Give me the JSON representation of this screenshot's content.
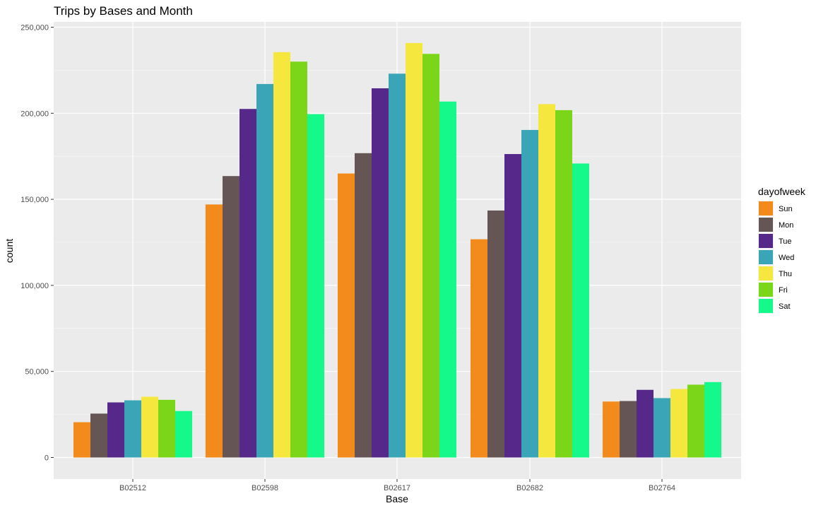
{
  "chart_data": {
    "type": "bar",
    "title": "Trips by Bases and Month",
    "xlabel": "Base",
    "ylabel": "count",
    "legend_title": "dayofweek",
    "legend_position": "right",
    "grid": true,
    "ylim": [
      0,
      250000
    ],
    "y_ticks": [
      0,
      50000,
      100000,
      150000,
      200000,
      250000
    ],
    "y_tick_labels": [
      "0",
      "50,000",
      "100,000",
      "150,000",
      "200,000",
      "250,000"
    ],
    "categories": [
      "B02512",
      "B02598",
      "B02617",
      "B02682",
      "B02764"
    ],
    "series": [
      {
        "name": "Sun",
        "color": "#F28A1C",
        "values": [
          20500,
          147000,
          165000,
          126800,
          32500
        ]
      },
      {
        "name": "Mon",
        "color": "#665555",
        "values": [
          25500,
          163500,
          176800,
          143500,
          32800
        ]
      },
      {
        "name": "Tue",
        "color": "#55288A",
        "values": [
          32000,
          202500,
          214500,
          176300,
          39300
        ]
      },
      {
        "name": "Wed",
        "color": "#3AA5B6",
        "values": [
          33200,
          217000,
          223000,
          190300,
          34500
        ]
      },
      {
        "name": "Thu",
        "color": "#F5E73D",
        "values": [
          35300,
          235500,
          240800,
          205300,
          39800
        ]
      },
      {
        "name": "Fri",
        "color": "#7BD619",
        "values": [
          33500,
          230000,
          234500,
          201800,
          42300
        ]
      },
      {
        "name": "Sat",
        "color": "#15F88A",
        "values": [
          27000,
          199500,
          206800,
          170800,
          43800
        ]
      }
    ]
  }
}
